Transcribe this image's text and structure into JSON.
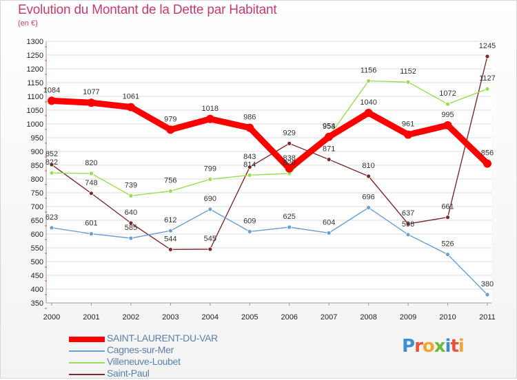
{
  "title": "Evolution du Montant de la Dette par Habitant",
  "subtitle": "(en €)",
  "logo_text": "Proxiti",
  "chart_data": {
    "type": "line",
    "title": "Evolution du Montant de la Dette par Habitant",
    "ylabel": "(en €)",
    "categories": [
      "2000",
      "2001",
      "2002",
      "2003",
      "2004",
      "2005",
      "2006",
      "2007",
      "2008",
      "2009",
      "2010",
      "2011"
    ],
    "ylim": [
      350,
      1300
    ],
    "yticks": [
      350,
      400,
      450,
      500,
      550,
      600,
      650,
      700,
      750,
      800,
      850,
      900,
      950,
      1000,
      1050,
      1100,
      1150,
      1200,
      1250,
      1300
    ],
    "grid": "horizontal",
    "legend_position": "bottom-left",
    "series": [
      {
        "name": "SAINT-LAURENT-DU-VAR",
        "color": "#ff0000",
        "values": [
          1084,
          1077,
          1061,
          979,
          1018,
          986,
          838,
          953,
          1040,
          961,
          995,
          856
        ]
      },
      {
        "name": "Cagnes-sur-Mer",
        "color": "#6a9fcf",
        "values": [
          623,
          601,
          585,
          612,
          690,
          609,
          625,
          604,
          696,
          598,
          526,
          380
        ]
      },
      {
        "name": "Villeneuve-Loubet",
        "color": "#99dd55",
        "values": [
          822,
          820,
          739,
          756,
          799,
          814,
          820,
          954,
          1156,
          1152,
          1072,
          1127
        ]
      },
      {
        "name": "Saint-Paul",
        "color": "#7a2a2a",
        "values": [
          852,
          748,
          640,
          544,
          545,
          843,
          929,
          871,
          810,
          637,
          661,
          1245
        ]
      }
    ]
  }
}
